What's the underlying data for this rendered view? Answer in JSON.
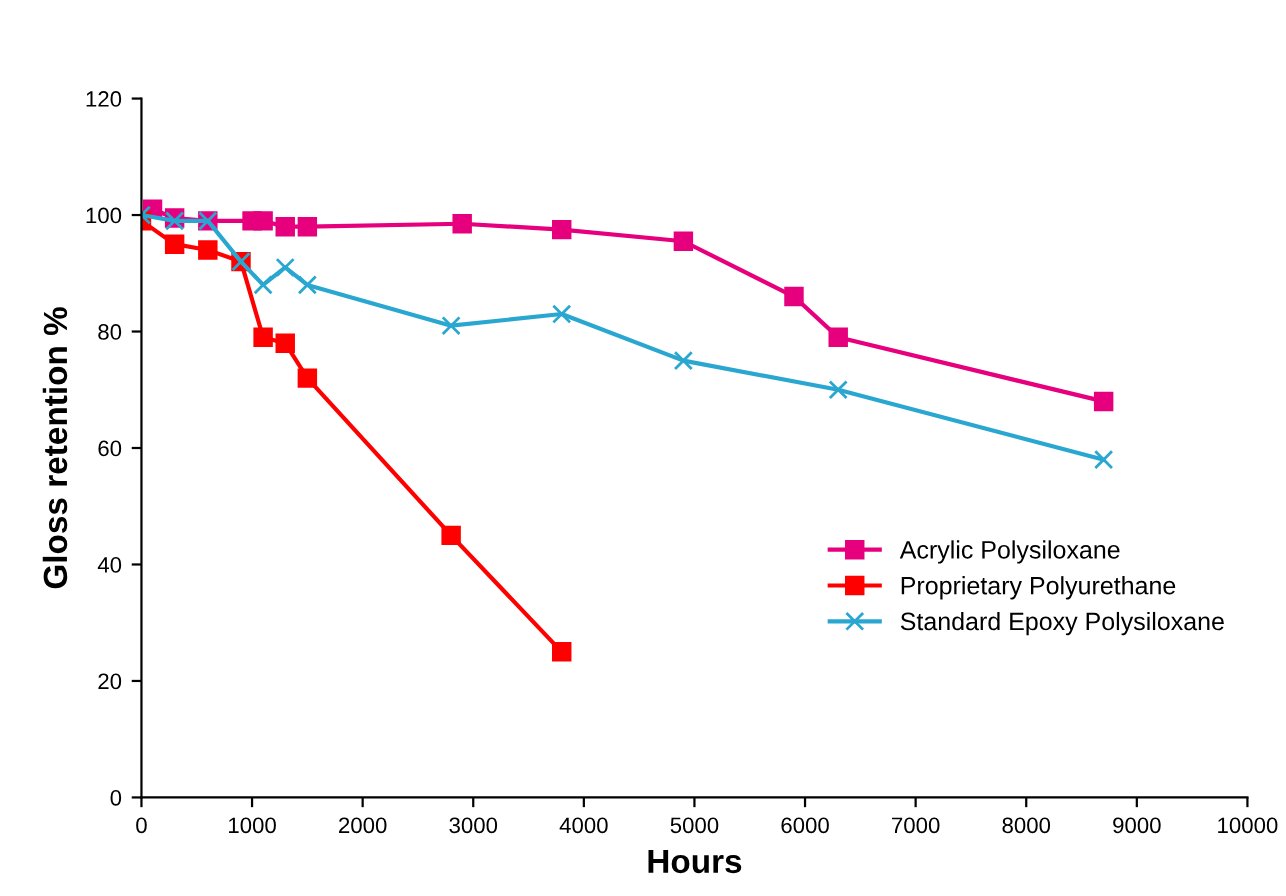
{
  "chart_data": {
    "type": "line",
    "xlabel": "Hours",
    "ylabel": "Gloss retention %",
    "xlim": [
      0,
      10000
    ],
    "xticks": [
      0,
      1000,
      2000,
      3000,
      4000,
      5000,
      6000,
      7000,
      8000,
      9000,
      10000
    ],
    "ylim": [
      0,
      120
    ],
    "yticks": [
      0,
      20,
      40,
      60,
      80,
      100,
      120
    ],
    "grid": false,
    "legend": "center right",
    "series": [
      {
        "name": "Acrylic Polysiloxane",
        "color": "#e6007e",
        "marker": "square",
        "x": [
          100,
          300,
          600,
          1000,
          1100,
          1300,
          1500,
          2900,
          3800,
          4900,
          5900,
          6300,
          8700
        ],
        "values": [
          101,
          99.5,
          99,
          99,
          99,
          98,
          98,
          98.5,
          97.5,
          95.5,
          86,
          79,
          68
        ]
      },
      {
        "name": "Proprietary Polyurethane",
        "color": "#ff0000",
        "marker": "square",
        "x": [
          0,
          300,
          600,
          900,
          1100,
          1300,
          1500,
          2800,
          3800
        ],
        "values": [
          99,
          95,
          94,
          92,
          79,
          78,
          72,
          45,
          25
        ]
      },
      {
        "name": "Standard Epoxy Polysiloxane",
        "color": "#2aa7d0",
        "marker": "cross",
        "x": [
          0,
          300,
          600,
          900,
          1100,
          1300,
          1500,
          2800,
          3800,
          4900,
          6300,
          8700
        ],
        "values": [
          100,
          99,
          99,
          92,
          88,
          91,
          88,
          81,
          83,
          75,
          70,
          58
        ]
      }
    ]
  }
}
